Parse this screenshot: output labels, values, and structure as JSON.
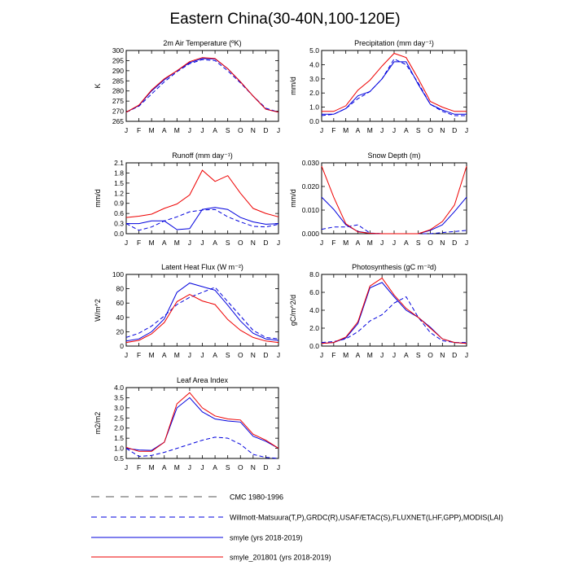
{
  "figure": {
    "title": "Eastern China(30-40N,100-120E)"
  },
  "legend": {
    "entries": [
      {
        "label": "CMC 1980-1996",
        "style": "long-dash",
        "color": "#555555"
      },
      {
        "label": "Willmott-Matsuura(T,P),GRDC(R),USAF/ETAC(S),FLUXNET(LHF,GPP),MODIS(LAI)",
        "style": "short-dash",
        "color": "#0000dd"
      },
      {
        "label": "smyle (yrs 2018-2019)",
        "style": "solid",
        "color": "#0000dd"
      },
      {
        "label": "smyle_201801 (yrs 2018-2019)",
        "style": "solid",
        "color": "#ee0000"
      }
    ]
  },
  "series_colors": {
    "obs": "#0000dd",
    "smyle": "#0000dd",
    "smyle_201801": "#ee0000"
  },
  "chart_data": [
    {
      "type": "line",
      "title": "2m Air Temperature (ºK)",
      "ylabel": "K",
      "categories": [
        "J",
        "F",
        "M",
        "A",
        "M",
        "J",
        "J",
        "A",
        "S",
        "O",
        "N",
        "D",
        "J"
      ],
      "ylim": [
        265,
        300
      ],
      "yticks": [
        "265",
        "270",
        "275",
        "280",
        "285",
        "290",
        "295",
        "300"
      ],
      "series": [
        {
          "name": "Willmott-Matsuura (obs)",
          "style": "dash",
          "values": [
            269.5,
            272.5,
            278.5,
            284.5,
            289.5,
            293.5,
            295.5,
            295.0,
            290.0,
            284.0,
            277.5,
            271.5,
            269.5
          ]
        },
        {
          "name": "smyle (yrs 2018-2019)",
          "style": "solid-blue",
          "values": [
            269.5,
            272.8,
            280.0,
            285.5,
            290.0,
            294.0,
            296.0,
            295.8,
            291.0,
            284.5,
            277.5,
            271.0,
            269.5
          ]
        },
        {
          "name": "smyle_201801 (yrs 2018-2019)",
          "style": "solid-red",
          "values": [
            269.5,
            273.0,
            280.5,
            286.0,
            290.0,
            294.5,
            296.5,
            296.0,
            291.0,
            284.5,
            277.5,
            271.0,
            269.5
          ]
        }
      ]
    },
    {
      "type": "line",
      "title": "Precipitation (mm day⁻¹)",
      "ylabel": "mm/d",
      "categories": [
        "J",
        "F",
        "M",
        "A",
        "M",
        "J",
        "J",
        "A",
        "S",
        "O",
        "N",
        "D",
        "J"
      ],
      "ylim": [
        0,
        5
      ],
      "yticks": [
        "0.0",
        "1.0",
        "2.0",
        "3.0",
        "4.0",
        "5.0"
      ],
      "series": [
        {
          "name": "Willmott-Matsuura (obs)",
          "style": "dash",
          "values": [
            0.4,
            0.5,
            0.9,
            1.6,
            2.1,
            3.0,
            4.4,
            4.0,
            2.7,
            1.2,
            0.7,
            0.4,
            0.4
          ]
        },
        {
          "name": "smyle (yrs 2018-2019)",
          "style": "solid-blue",
          "values": [
            0.5,
            0.5,
            0.9,
            1.8,
            2.1,
            3.0,
            4.2,
            4.2,
            2.6,
            1.2,
            0.8,
            0.5,
            0.5
          ]
        },
        {
          "name": "smyle_201801 (yrs 2018-2019)",
          "style": "solid-red",
          "values": [
            0.7,
            0.7,
            1.1,
            2.2,
            2.9,
            3.9,
            4.8,
            4.5,
            3.0,
            1.4,
            1.0,
            0.7,
            0.7
          ]
        }
      ]
    },
    {
      "type": "line",
      "title": "Runoff (mm day⁻¹)",
      "ylabel": "mm/d",
      "categories": [
        "J",
        "F",
        "M",
        "A",
        "M",
        "J",
        "J",
        "A",
        "S",
        "O",
        "N",
        "D",
        "J"
      ],
      "ylim": [
        0,
        2.1
      ],
      "yticks": [
        "0.0",
        "0.3",
        "0.6",
        "0.9",
        "1.2",
        "1.5",
        "1.8",
        "2.1"
      ],
      "series": [
        {
          "name": "GRDC (obs)",
          "style": "dash",
          "values": [
            0.3,
            0.1,
            0.2,
            0.38,
            0.5,
            0.65,
            0.7,
            0.72,
            0.5,
            0.35,
            0.22,
            0.2,
            0.28
          ]
        },
        {
          "name": "smyle (yrs 2018-2019)",
          "style": "solid-blue",
          "values": [
            0.3,
            0.3,
            0.38,
            0.38,
            0.12,
            0.15,
            0.72,
            0.78,
            0.72,
            0.48,
            0.35,
            0.28,
            0.3
          ]
        },
        {
          "name": "smyle_201801 (yrs 2018-2019)",
          "style": "solid-red",
          "values": [
            0.48,
            0.52,
            0.58,
            0.75,
            0.88,
            1.15,
            1.88,
            1.55,
            1.72,
            1.2,
            0.75,
            0.6,
            0.5
          ]
        }
      ]
    },
    {
      "type": "line",
      "title": "Snow Depth (m)",
      "ylabel": "mm/d",
      "categories": [
        "J",
        "F",
        "M",
        "A",
        "M",
        "J",
        "J",
        "A",
        "S",
        "O",
        "N",
        "D",
        "J"
      ],
      "ylim": [
        0,
        0.032
      ],
      "yticks": [
        "0.000",
        "0.010",
        "0.020",
        "0.030"
      ],
      "series": [
        {
          "name": "USAF/ETAC (obs)",
          "style": "dash",
          "values": [
            0.002,
            0.003,
            0.003,
            0.004,
            0.0003,
            0,
            0,
            0,
            0,
            0,
            0.0005,
            0.001,
            0.0015
          ]
        },
        {
          "name": "smyle (yrs 2018-2019)",
          "style": "solid-blue",
          "values": [
            0.0165,
            0.011,
            0.004,
            0.001,
            0.0002,
            0,
            0,
            0,
            0,
            0.0015,
            0.004,
            0.01,
            0.0165
          ]
        },
        {
          "name": "smyle_201801 (yrs 2018-2019)",
          "style": "solid-red",
          "values": [
            0.0305,
            0.0165,
            0.0045,
            0.0008,
            0.0002,
            0,
            0,
            0,
            0,
            0.0018,
            0.0055,
            0.013,
            0.0305
          ]
        }
      ]
    },
    {
      "type": "line",
      "title": "Latent Heat Flux (W m⁻²)",
      "ylabel": "W/m^2",
      "categories": [
        "J",
        "F",
        "M",
        "A",
        "M",
        "J",
        "J",
        "A",
        "S",
        "O",
        "N",
        "D",
        "J"
      ],
      "ylim": [
        0,
        100
      ],
      "yticks": [
        "0",
        "20",
        "40",
        "60",
        "80",
        "100"
      ],
      "series": [
        {
          "name": "FLUXNET (obs)",
          "style": "dash",
          "values": [
            12,
            18,
            28,
            42,
            58,
            68,
            75,
            82,
            62,
            42,
            22,
            12,
            10
          ]
        },
        {
          "name": "smyle (yrs 2018-2019)",
          "style": "solid-blue",
          "values": [
            7,
            10,
            20,
            38,
            75,
            88,
            83,
            78,
            57,
            35,
            18,
            10,
            8
          ]
        },
        {
          "name": "smyle_201801 (yrs 2018-2019)",
          "style": "solid-red",
          "values": [
            5,
            8,
            17,
            33,
            62,
            72,
            63,
            58,
            37,
            22,
            12,
            7,
            5
          ]
        }
      ]
    },
    {
      "type": "line",
      "title": "Photosynthesis (gC m⁻²d)",
      "ylabel": "gC/m^2/d",
      "categories": [
        "J",
        "F",
        "M",
        "A",
        "M",
        "J",
        "J",
        "A",
        "S",
        "O",
        "N",
        "D",
        "J"
      ],
      "ylim": [
        0,
        8
      ],
      "yticks": [
        "0.0",
        "2.0",
        "4.0",
        "6.0",
        "8.0"
      ],
      "series": [
        {
          "name": "FLUXNET (obs)",
          "style": "dash",
          "values": [
            0.4,
            0.5,
            0.8,
            1.6,
            2.8,
            3.5,
            4.8,
            5.5,
            3.2,
            1.5,
            0.6,
            0.4,
            0.4
          ]
        },
        {
          "name": "smyle (yrs 2018-2019)",
          "style": "solid-blue",
          "values": [
            0.3,
            0.4,
            0.9,
            2.5,
            6.5,
            7.1,
            5.5,
            4.0,
            3.2,
            2.1,
            0.8,
            0.4,
            0.3
          ]
        },
        {
          "name": "smyle_201801 (yrs 2018-2019)",
          "style": "solid-red",
          "values": [
            0.3,
            0.4,
            1.0,
            2.7,
            6.7,
            7.6,
            5.7,
            4.2,
            3.2,
            2.0,
            0.8,
            0.4,
            0.3
          ]
        }
      ]
    },
    {
      "type": "line",
      "title": "Leaf Area Index",
      "ylabel": "m2/m2",
      "categories": [
        "J",
        "F",
        "M",
        "A",
        "M",
        "J",
        "J",
        "A",
        "S",
        "O",
        "N",
        "D",
        "J"
      ],
      "ylim": [
        0.5,
        4.0
      ],
      "yticks": [
        "0.5",
        "1.0",
        "1.5",
        "2.0",
        "2.5",
        "3.0",
        "3.5",
        "4.0"
      ],
      "series": [
        {
          "name": "MODIS (obs)",
          "style": "dash",
          "values": [
            1.0,
            0.6,
            0.65,
            0.8,
            1.0,
            1.2,
            1.4,
            1.55,
            1.5,
            1.2,
            0.7,
            0.55,
            0.5
          ]
        },
        {
          "name": "smyle (yrs 2018-2019)",
          "style": "solid-blue",
          "values": [
            1.0,
            0.92,
            0.9,
            1.3,
            3.0,
            3.5,
            2.8,
            2.45,
            2.35,
            2.3,
            1.6,
            1.35,
            1.0
          ]
        },
        {
          "name": "smyle_201801 (yrs 2018-2019)",
          "style": "solid-red",
          "values": [
            1.05,
            0.85,
            0.85,
            1.3,
            3.2,
            3.75,
            3.0,
            2.6,
            2.45,
            2.4,
            1.7,
            1.4,
            1.0
          ]
        }
      ]
    }
  ]
}
